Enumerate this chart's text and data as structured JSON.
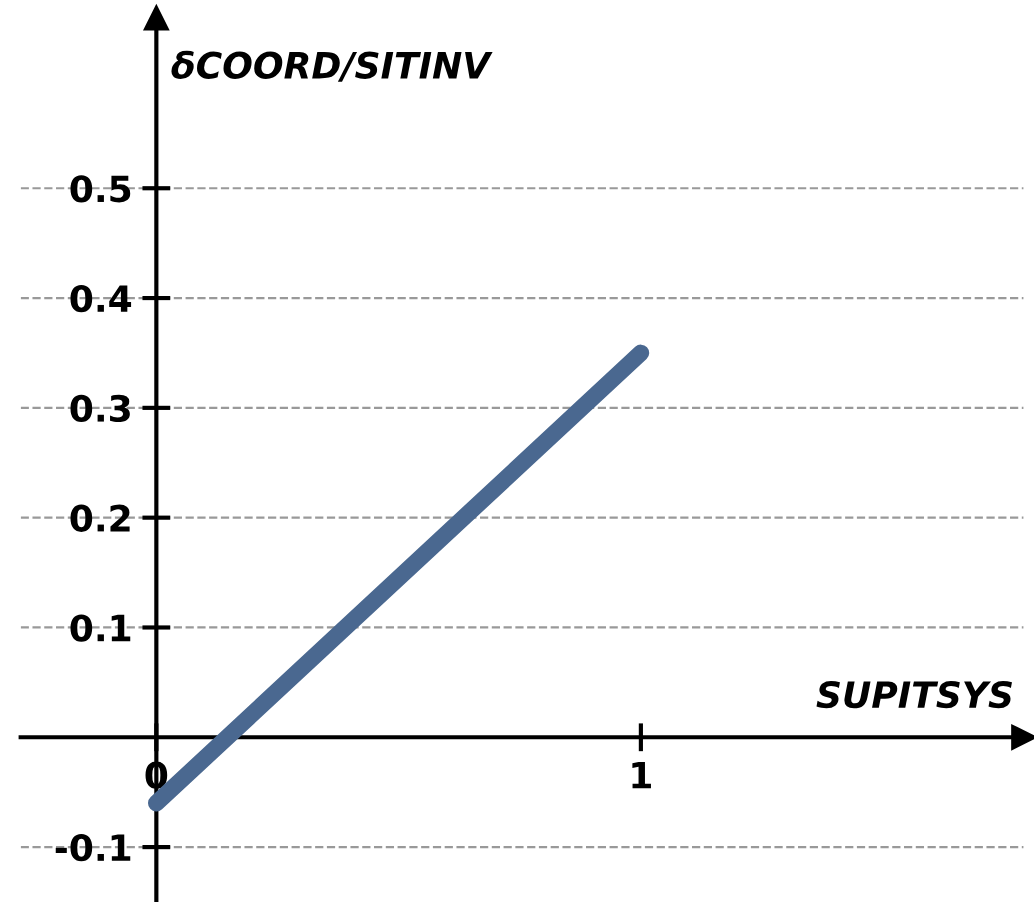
{
  "chart_data": {
    "type": "line",
    "xlabel": "SUPITSYS",
    "ylabel": "δCOORD/SITINV",
    "x": [
      0,
      1
    ],
    "series": [
      {
        "color": "#4a6890",
        "values": [
          -0.06,
          0.35
        ]
      }
    ],
    "xlim": [
      -0.28,
      1.79
    ],
    "ylim": [
      -0.15,
      0.655
    ],
    "xticks": [
      0,
      1
    ],
    "yticks": [
      -0.1,
      0.1,
      0.2,
      0.3,
      0.4,
      0.5
    ],
    "grid": "y",
    "marker": "none",
    "line_style": "solid"
  }
}
